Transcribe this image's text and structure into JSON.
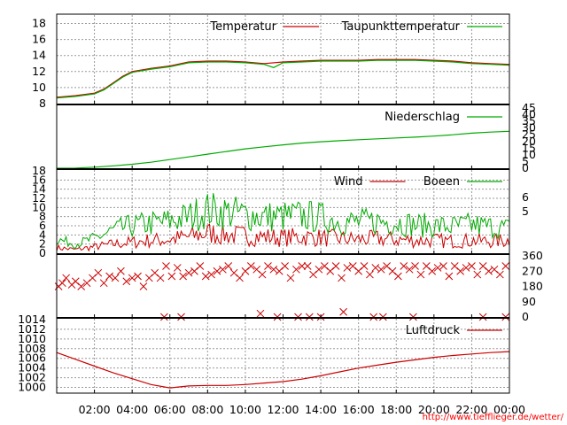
{
  "colors": {
    "temperature": "#cc0000",
    "dewpoint": "#00aa00",
    "rain": "#00aa00",
    "wind": "#cc0000",
    "gust": "#00aa00",
    "direction": "#cc0000",
    "pressure": "#cc0000",
    "grid": "#999999",
    "credit": "#ff0000"
  },
  "credit": "http://www.tiefflieger.de/wetter/",
  "x_ticks": [
    "02:00",
    "04:00",
    "06:00",
    "08:00",
    "10:00",
    "12:00",
    "14:00",
    "16:00",
    "18:00",
    "20:00",
    "22:00",
    "00:00"
  ],
  "chart_data": [
    {
      "type": "line",
      "panel": "temperature",
      "x_unit": "hours",
      "y_range": [
        8,
        18.5
      ],
      "y_ticks": [
        8,
        10,
        12,
        14,
        16,
        18
      ],
      "grid": true,
      "legend_position": "top-right",
      "series": [
        {
          "name": "Temperatur",
          "color_key": "temperature",
          "x": [
            0,
            1,
            2,
            2.5,
            3,
            3.5,
            4,
            5,
            6,
            7,
            8,
            9,
            10,
            11,
            12,
            13,
            14,
            15,
            16,
            17,
            18,
            19,
            20,
            21,
            22,
            23,
            24
          ],
          "y": [
            8.8,
            9.0,
            9.3,
            9.8,
            10.6,
            11.4,
            12.0,
            12.4,
            12.7,
            13.2,
            13.3,
            13.3,
            13.2,
            13.0,
            13.2,
            13.3,
            13.4,
            13.4,
            13.4,
            13.5,
            13.5,
            13.5,
            13.4,
            13.3,
            13.1,
            13.0,
            12.9
          ]
        },
        {
          "name": "Taupunkttemperatur",
          "color_key": "dewpoint",
          "x": [
            0,
            1,
            2,
            2.5,
            3,
            3.5,
            4,
            5,
            6,
            7,
            8,
            9,
            10,
            11,
            11.5,
            12,
            13,
            14,
            15,
            16,
            17,
            18,
            19,
            20,
            21,
            22,
            23,
            24
          ],
          "y": [
            8.7,
            8.9,
            9.2,
            9.7,
            10.5,
            11.3,
            11.9,
            12.3,
            12.6,
            13.1,
            13.2,
            13.2,
            13.1,
            12.9,
            12.5,
            13.1,
            13.2,
            13.3,
            13.3,
            13.3,
            13.4,
            13.4,
            13.4,
            13.3,
            13.2,
            13.0,
            12.9,
            12.8
          ]
        }
      ]
    },
    {
      "type": "line",
      "panel": "precipitation",
      "x_unit": "hours",
      "y_range": [
        0,
        45
      ],
      "y_ticks": [
        0,
        5,
        10,
        15,
        20,
        25,
        30,
        35,
        40,
        45
      ],
      "grid": false,
      "legend_position": "top-right",
      "series": [
        {
          "name": "Niederschlag",
          "color_key": "rain",
          "x": [
            0,
            1,
            2,
            3,
            4,
            5,
            6,
            7,
            8,
            9,
            10,
            11,
            12,
            13,
            14,
            15,
            16,
            17,
            18,
            19,
            20,
            21,
            22,
            23,
            24
          ],
          "y": [
            0,
            0.1,
            0.8,
            1.8,
            3.0,
            4.5,
            6.5,
            8.5,
            10.5,
            12.5,
            14.5,
            16.0,
            17.5,
            18.8,
            19.8,
            20.6,
            21.3,
            22.0,
            22.6,
            23.2,
            24.0,
            25.0,
            26.2,
            27.0,
            27.6
          ]
        }
      ]
    },
    {
      "type": "line",
      "panel": "wind",
      "x_unit": "hours",
      "y_range": [
        0,
        18
      ],
      "y_ticks": [
        0,
        2,
        4,
        6,
        8,
        10,
        12,
        14,
        16,
        18
      ],
      "y2_ticks": [
        5,
        6
      ],
      "grid": true,
      "legend_position": "top-right",
      "series": [
        {
          "name": "Wind",
          "color_key": "wind",
          "x": [
            0,
            1,
            2,
            3,
            4,
            5,
            6,
            7,
            8,
            9,
            10,
            11,
            12,
            13,
            14,
            15,
            16,
            17,
            18,
            19,
            20,
            21,
            22,
            23,
            24
          ],
          "y": [
            1.2,
            0.8,
            1.4,
            2.0,
            2.4,
            2.8,
            3.0,
            3.6,
            4.4,
            4.0,
            3.8,
            3.6,
            3.4,
            3.6,
            3.4,
            3.2,
            3.0,
            3.2,
            3.0,
            2.8,
            2.8,
            2.6,
            2.8,
            2.6,
            2.8
          ]
        },
        {
          "name": "Boeen",
          "color_key": "gust",
          "x": [
            0,
            1,
            2,
            3,
            4,
            5,
            6,
            7,
            8,
            9,
            10,
            11,
            12,
            13,
            14,
            15,
            16,
            17,
            18,
            19,
            20,
            21,
            22,
            23,
            24
          ],
          "y": [
            3.0,
            2.0,
            3.2,
            5.0,
            6.0,
            6.5,
            7.0,
            8.0,
            9.5,
            9.0,
            8.5,
            8.0,
            8.0,
            8.2,
            7.8,
            7.0,
            6.8,
            7.0,
            6.8,
            6.2,
            6.0,
            5.8,
            6.2,
            5.8,
            5.4
          ]
        }
      ]
    },
    {
      "type": "scatter",
      "panel": "wind_direction",
      "x_unit": "hours",
      "y_range": [
        0,
        360
      ],
      "y2_ticks": [
        0,
        90,
        180,
        270,
        360
      ],
      "grid": false,
      "marker": "x",
      "series": [
        {
          "name": "",
          "color_key": "direction",
          "x": [
            0.1,
            0.3,
            0.5,
            0.8,
            1.0,
            1.3,
            1.6,
            1.9,
            2.2,
            2.5,
            2.8,
            3.1,
            3.4,
            3.7,
            4.0,
            4.3,
            4.6,
            4.9,
            5.2,
            5.5,
            5.8,
            6.1,
            6.4,
            6.7,
            7.0,
            7.3,
            7.6,
            7.9,
            8.2,
            8.5,
            8.8,
            9.1,
            9.4,
            9.7,
            10.0,
            10.3,
            10.6,
            10.9,
            11.2,
            11.5,
            11.8,
            12.1,
            12.4,
            12.7,
            13.0,
            13.3,
            13.6,
            13.9,
            14.2,
            14.5,
            14.8,
            15.1,
            15.4,
            15.7,
            16.0,
            16.3,
            16.6,
            16.9,
            17.2,
            17.5,
            17.8,
            18.1,
            18.4,
            18.7,
            19.0,
            19.3,
            19.6,
            19.9,
            20.2,
            20.5,
            20.8,
            21.1,
            21.4,
            21.7,
            22.0,
            22.3,
            22.6,
            22.9,
            23.2,
            23.5,
            23.8,
            5.7,
            6.6,
            10.8,
            11.7,
            12.8,
            13.4,
            14.0,
            15.2,
            16.8,
            17.3,
            18.9,
            22.6,
            23.8
          ],
          "y": [
            180,
            200,
            230,
            190,
            210,
            180,
            200,
            230,
            260,
            200,
            240,
            230,
            270,
            210,
            230,
            240,
            180,
            230,
            260,
            230,
            300,
            240,
            290,
            240,
            260,
            270,
            300,
            240,
            250,
            270,
            280,
            300,
            260,
            230,
            270,
            300,
            280,
            250,
            300,
            280,
            270,
            300,
            230,
            280,
            300,
            300,
            250,
            280,
            300,
            270,
            300,
            230,
            290,
            300,
            270,
            300,
            250,
            290,
            280,
            300,
            270,
            240,
            300,
            280,
            300,
            250,
            300,
            270,
            290,
            300,
            240,
            300,
            270,
            290,
            300,
            250,
            300,
            270,
            280,
            250,
            300,
            0,
            0,
            20,
            0,
            0,
            0,
            0,
            30,
            0,
            0,
            0,
            0,
            0
          ]
        }
      ]
    },
    {
      "type": "line",
      "panel": "pressure",
      "x_unit": "hours",
      "y_range": [
        999,
        1014
      ],
      "y_ticks": [
        1000,
        1002,
        1004,
        1006,
        1008,
        1010,
        1012,
        1014
      ],
      "grid": true,
      "legend_position": "top-right",
      "series": [
        {
          "name": "Luftdruck",
          "color_key": "pressure",
          "x": [
            0,
            1,
            2,
            3,
            4,
            5,
            6,
            7,
            8,
            9,
            10,
            11,
            12,
            13,
            14,
            15,
            16,
            17,
            18,
            19,
            20,
            21,
            22,
            23,
            24
          ],
          "y": [
            1007.2,
            1005.8,
            1004.4,
            1003.0,
            1001.8,
            1000.6,
            999.9,
            1000.3,
            1000.4,
            1000.4,
            1000.6,
            1000.9,
            1001.2,
            1001.7,
            1002.4,
            1003.2,
            1004.0,
            1004.6,
            1005.2,
            1005.7,
            1006.2,
            1006.6,
            1006.9,
            1007.2,
            1007.4
          ]
        }
      ]
    }
  ]
}
